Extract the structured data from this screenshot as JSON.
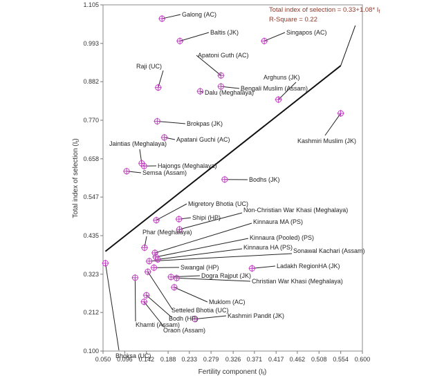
{
  "chart_data": {
    "type": "scatter",
    "title": "",
    "xlabel": "Fertility component (I",
    "xlabel_sub": "f",
    "xlabel_tail": ")",
    "ylabel": "Total index of selection (I",
    "ylabel_sub": "t",
    "ylabel_tail": ")",
    "xlim": [
      0.05,
      0.6
    ],
    "ylim": [
      0.1,
      1.105
    ],
    "x_ticks": [
      "0.050",
      "0.096",
      "0.142",
      "0.188",
      "0.233",
      "0.279",
      "0.326",
      "0.371",
      "0.417",
      "0.462",
      "0.508",
      "0.554",
      "0.600"
    ],
    "y_ticks": [
      "0.100",
      "0.212",
      "0.323",
      "0.435",
      "0.547",
      "0.658",
      "0.770",
      "0.882",
      "0.993",
      "1.105"
    ],
    "equation": {
      "line1_pre": "Total index of selection = 0.33+1.08* I",
      "line1_sub": "f",
      "line2": "R-Square = 0.22",
      "color": "#8b3a2b"
    },
    "regression_line": {
      "intercept": 0.33,
      "slope": 1.08,
      "x_start": 0.055,
      "x_end": 0.554,
      "extension_end": [
        0.585,
        1.045
      ]
    },
    "marker_color": "#c040c0",
    "points": [
      {
        "label": "Galong (AC)",
        "x": 0.175,
        "y": 1.065
      },
      {
        "label": "Baltis (JK)",
        "x": 0.213,
        "y": 1.0
      },
      {
        "label": "Singapos (AC)",
        "x": 0.392,
        "y": 1.0
      },
      {
        "label": "Apatoni Guth (AC)",
        "x": 0.3,
        "y": 0.9
      },
      {
        "label": "Raji (UC)",
        "x": 0.167,
        "y": 0.865
      },
      {
        "label": "Arghuns (JK)",
        "x": 0.422,
        "y": 0.83
      },
      {
        "label": "Bengali Muslim (Assam)",
        "x": 0.3,
        "y": 0.868
      },
      {
        "label": "Dalu (Meghalaya)",
        "x": 0.256,
        "y": 0.854
      },
      {
        "label": "Kashmiri Muslim (JK)",
        "x": 0.554,
        "y": 0.79
      },
      {
        "label": "Brokpas (JK)",
        "x": 0.165,
        "y": 0.767
      },
      {
        "label": "Apatani Guchi (AC)",
        "x": 0.18,
        "y": 0.72
      },
      {
        "label": "Jaintias (Meghalaya)",
        "x": 0.132,
        "y": 0.645
      },
      {
        "label": "Hajongs (Meghalaya)",
        "x": 0.137,
        "y": 0.637
      },
      {
        "label": "Semsa (Assam)",
        "x": 0.1,
        "y": 0.622
      },
      {
        "label": "Bodhs (JK)",
        "x": 0.308,
        "y": 0.598
      },
      {
        "label": "Migretory Bhotia (UC)",
        "x": 0.163,
        "y": 0.48
      },
      {
        "label": "Shipi (HP)",
        "x": 0.211,
        "y": 0.483
      },
      {
        "label": "Non-Christian War Khasi (Meghalaya)",
        "x": 0.212,
        "y": 0.453
      },
      {
        "label": "Phar (Meghalaya)",
        "x": 0.138,
        "y": 0.4
      },
      {
        "label": "Kinnaura MA (PS)",
        "x": 0.16,
        "y": 0.385
      },
      {
        "label": "Kinnaura (Pooled) (PS)",
        "x": 0.162,
        "y": 0.373
      },
      {
        "label": "Kinnaura HA (PS)",
        "x": 0.166,
        "y": 0.366
      },
      {
        "label": "Sonawal Kachari (Assam)",
        "x": 0.148,
        "y": 0.361
      },
      {
        "label": "Bhoksa (UC)",
        "x": 0.055,
        "y": 0.355
      },
      {
        "label": "Swangal (HP)",
        "x": 0.158,
        "y": 0.342
      },
      {
        "label": "Ladakh RegionHA (JK)",
        "x": 0.366,
        "y": 0.34
      },
      {
        "label": "Dogra Rajput (JK)",
        "x": 0.194,
        "y": 0.315
      },
      {
        "label": "Christian War Khasi (Meghalaya)",
        "x": 0.206,
        "y": 0.312
      },
      {
        "label": "Setteled Bhotia (UC)",
        "x": 0.145,
        "y": 0.33
      },
      {
        "label": "Khamti (Assam)",
        "x": 0.118,
        "y": 0.313
      },
      {
        "label": "Muklom (AC)",
        "x": 0.201,
        "y": 0.285
      },
      {
        "label": "Bodh (HP)",
        "x": 0.142,
        "y": 0.262
      },
      {
        "label": "Oraon (Assam)",
        "x": 0.137,
        "y": 0.243
      },
      {
        "label": "Kashmiri Pandit (JK)",
        "x": 0.245,
        "y": 0.193
      }
    ]
  }
}
